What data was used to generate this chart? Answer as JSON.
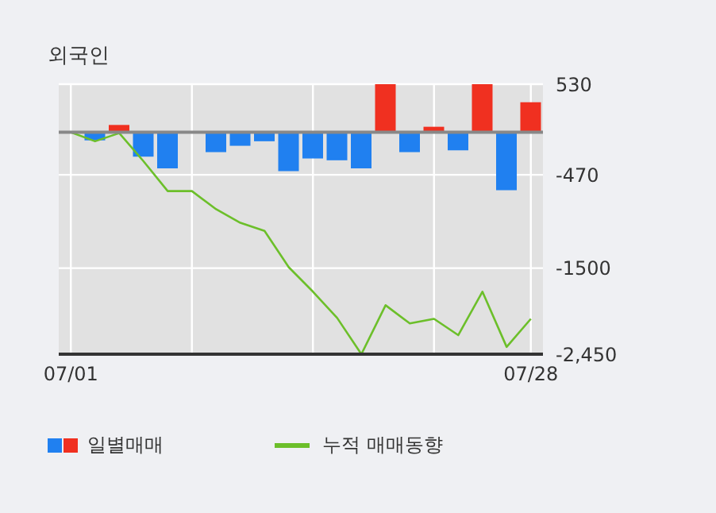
{
  "chart_data": {
    "type": "bar",
    "title": "외국인",
    "categories": [
      "07/01",
      null,
      null,
      null,
      null,
      null,
      null,
      null,
      null,
      null,
      null,
      null,
      null,
      null,
      null,
      null,
      null,
      null,
      null,
      "07/28"
    ],
    "series": [
      {
        "name": "일별매매",
        "colors": [
          "#2080f0",
          "#2080f0",
          "#f03020",
          "#2080f0",
          "#2080f0",
          "#2080f0",
          "#2080f0",
          "#2080f0",
          "#2080f0",
          "#2080f0",
          "#2080f0",
          "#2080f0",
          "#2080f0",
          "#f03020",
          "#2080f0",
          "#f03020",
          "#2080f0",
          "#f03020",
          "#2080f0",
          "#f03020"
        ],
        "values": [
          0,
          -90,
          80,
          -270,
          -400,
          0,
          -220,
          -150,
          -100,
          -430,
          -290,
          -310,
          -400,
          530,
          -220,
          60,
          -200,
          530,
          -640,
          330
        ]
      },
      {
        "name": "누적 매매동향",
        "type": "line",
        "color": "#6cbf2a",
        "values": [
          0,
          -100,
          -10,
          -320,
          -650,
          -650,
          -850,
          -1000,
          -1090,
          -1490,
          -1760,
          -2050,
          -2450,
          -1910,
          -2110,
          -2060,
          -2240,
          -1760,
          -2370,
          -2060
        ]
      }
    ],
    "ylim": [
      -2450,
      530
    ],
    "yticks": [
      530,
      -470,
      -1500,
      {
        "value": -2450,
        "label": "-2,450"
      }
    ],
    "ref_lines": [
      {
        "axis": "y",
        "value": 0,
        "color": "#888888"
      }
    ],
    "grid": true,
    "legend": "bottom",
    "marker": "none",
    "line_style": "solid"
  }
}
